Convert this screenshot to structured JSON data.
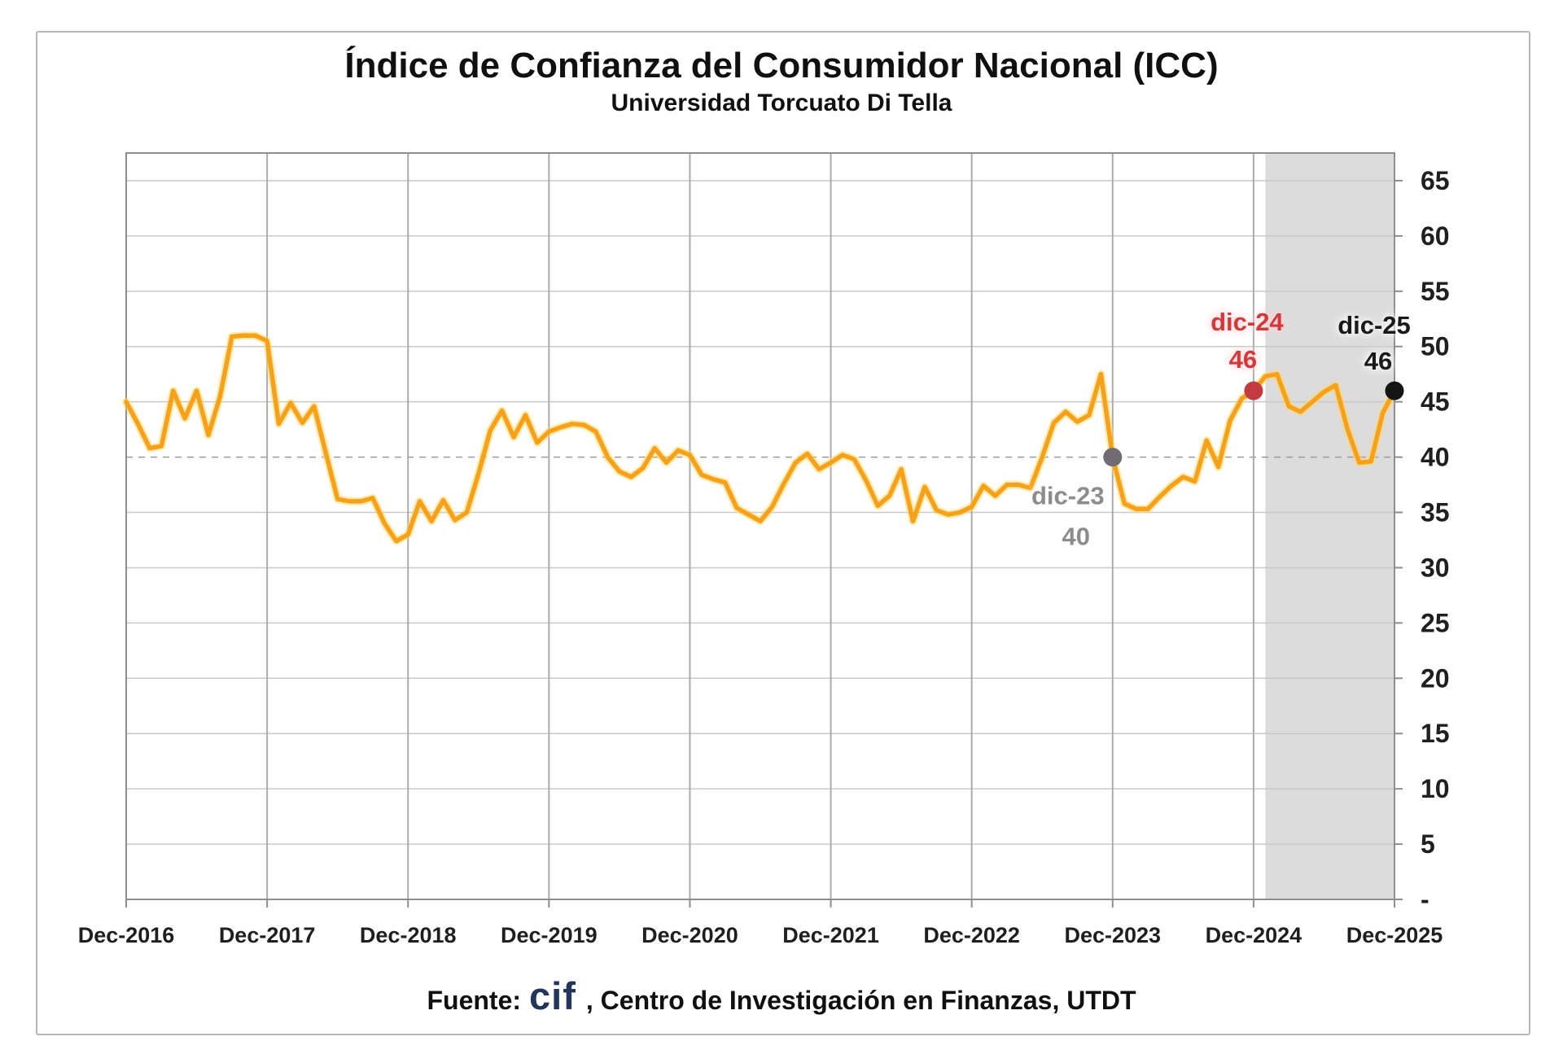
{
  "title": "Índice de Confianza del Consumidor Nacional (ICC)",
  "subtitle": "Universidad Torcuato Di Tella",
  "footer": {
    "prefix": "Fuente:",
    "logo": "cif",
    "suffix": ", Centro de Investigación en Finanzas, UTDT"
  },
  "chart_data": {
    "type": "line",
    "title": "Índice de Confianza del Consumidor Nacional (ICC)",
    "subtitle": "Universidad Torcuato Di Tella",
    "x_start_month": "Dec-2016",
    "x_end_month": "Dec-2025",
    "x_tick_labels": [
      "Dec-2016",
      "Dec-2017",
      "Dec-2018",
      "Dec-2019",
      "Dec-2020",
      "Dec-2021",
      "Dec-2022",
      "Dec-2023",
      "Dec-2024",
      "Dec-2025"
    ],
    "y_tick_labels": [
      "65",
      "60",
      "55",
      "50",
      "45",
      "40",
      "35",
      "30",
      "25",
      "20",
      "15",
      "10",
      "5",
      "-"
    ],
    "y_tick_values": [
      65,
      60,
      55,
      50,
      45,
      40,
      35,
      30,
      25,
      20,
      15,
      10,
      5,
      0
    ],
    "ylim": [
      0,
      67.5
    ],
    "grid": true,
    "legend_position": "none",
    "y_axis_side": "right",
    "series": [
      {
        "name": "ICC",
        "color": "#F7A11B",
        "glow_color": "#FFD75E",
        "monthly_values": [
          45.0,
          43.0,
          40.8,
          41.0,
          46.0,
          43.5,
          46.0,
          42.0,
          45.5,
          50.9,
          51.0,
          51.0,
          50.5,
          43.0,
          44.9,
          43.1,
          44.6,
          40.4,
          36.2,
          36.0,
          36.0,
          36.3,
          34.0,
          32.4,
          33.0,
          36.0,
          34.2,
          36.1,
          34.3,
          35.0,
          38.5,
          42.4,
          44.2,
          41.8,
          43.8,
          41.3,
          42.3,
          42.7,
          43.0,
          42.9,
          42.3,
          40.0,
          38.7,
          38.2,
          39.0,
          40.8,
          39.5,
          40.6,
          40.2,
          38.4,
          38.0,
          37.7,
          35.4,
          34.8,
          34.2,
          35.5,
          37.6,
          39.5,
          40.3,
          38.9,
          39.5,
          40.2,
          39.8,
          37.9,
          35.6,
          36.5,
          38.9,
          34.2,
          37.3,
          35.2,
          34.8,
          35.0,
          35.5,
          37.4,
          36.5,
          37.5,
          37.5,
          37.2,
          40.0,
          43.1,
          44.1,
          43.2,
          43.8,
          47.5,
          40.0,
          35.8,
          35.3,
          35.3,
          36.4,
          37.4,
          38.2,
          37.8,
          41.5,
          39.1,
          43.3,
          45.3,
          46.0,
          47.3,
          47.5,
          44.6,
          44.1,
          45.0,
          45.9,
          46.5,
          42.5,
          39.5,
          39.6,
          44.0,
          46.0
        ]
      }
    ],
    "forecast_band": {
      "from_month_index": 97,
      "to_month_index": 108,
      "color": "#DCDCDC"
    },
    "annotations": [
      {
        "id": "dic-23",
        "label": "dic-23",
        "value_label": "40",
        "month_index": 84,
        "value": 40,
        "text_color": "#8C8C8C",
        "dot_color": "#716C72",
        "halo": "white",
        "position": "below-left"
      },
      {
        "id": "dic-24",
        "label": "dic-24",
        "value_label": "46",
        "month_index": 96,
        "value": 46,
        "text_color": "#D03A3A",
        "dot_color": "#C23B41",
        "halo": "pink",
        "position": "above"
      },
      {
        "id": "dic-25",
        "label": "dic-25",
        "value_label": "46",
        "month_index": 108,
        "value": 46,
        "text_color": "#1A1A1A",
        "dot_color": "#141414",
        "halo": "white",
        "position": "above-left"
      }
    ],
    "colors": {
      "grid_h": "#C9C9C9",
      "grid_h_dashed_at_40": "#9C9C9C",
      "grid_v": "#ABABAB",
      "axis": "#8E8E8E",
      "tick_label": "#1F1F1F"
    }
  }
}
